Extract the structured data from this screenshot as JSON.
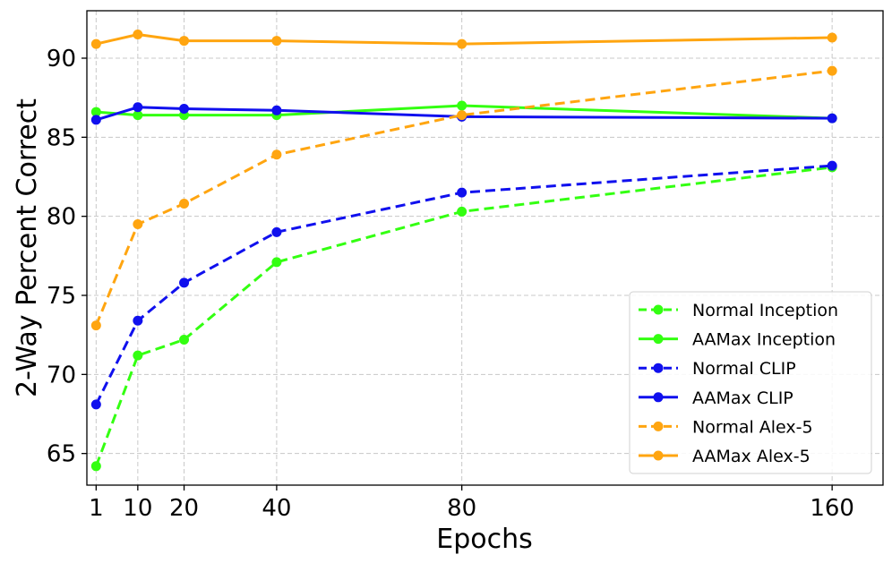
{
  "chart_data": {
    "type": "line",
    "title": "",
    "xlabel": "Epochs",
    "ylabel": "2-Way Percent Correct",
    "x": [
      1,
      10,
      20,
      40,
      80,
      160
    ],
    "xticks": [
      "1",
      "10",
      "20",
      "40",
      "80",
      "160"
    ],
    "yticks": [
      "65",
      "70",
      "75",
      "80",
      "85",
      "90"
    ],
    "ylim": [
      63,
      93
    ],
    "xlim": [
      -1,
      171
    ],
    "grid": true,
    "legend_position": "lower-right",
    "series": [
      {
        "name": "Normal Inception",
        "color": "#33ff11",
        "style": "dashed",
        "values": [
          64.2,
          71.2,
          72.2,
          77.1,
          80.3,
          83.1
        ]
      },
      {
        "name": "AAMax Inception",
        "color": "#33ff11",
        "style": "solid",
        "values": [
          86.6,
          86.4,
          86.4,
          86.4,
          87.0,
          86.2
        ]
      },
      {
        "name": "Normal CLIP",
        "color": "#1010ee",
        "style": "dashed",
        "values": [
          68.1,
          73.4,
          75.8,
          79.0,
          81.5,
          83.2
        ]
      },
      {
        "name": "AAMax CLIP",
        "color": "#1010ee",
        "style": "solid",
        "values": [
          86.1,
          86.9,
          86.8,
          86.7,
          86.3,
          86.2
        ]
      },
      {
        "name": "Normal Alex-5",
        "color": "#ffa510",
        "style": "dashed",
        "values": [
          73.1,
          79.5,
          80.8,
          83.9,
          86.4,
          89.2
        ]
      },
      {
        "name": "AAMax Alex-5",
        "color": "#ffa510",
        "style": "solid",
        "values": [
          90.9,
          91.5,
          91.1,
          91.1,
          90.9,
          91.3
        ]
      }
    ]
  }
}
